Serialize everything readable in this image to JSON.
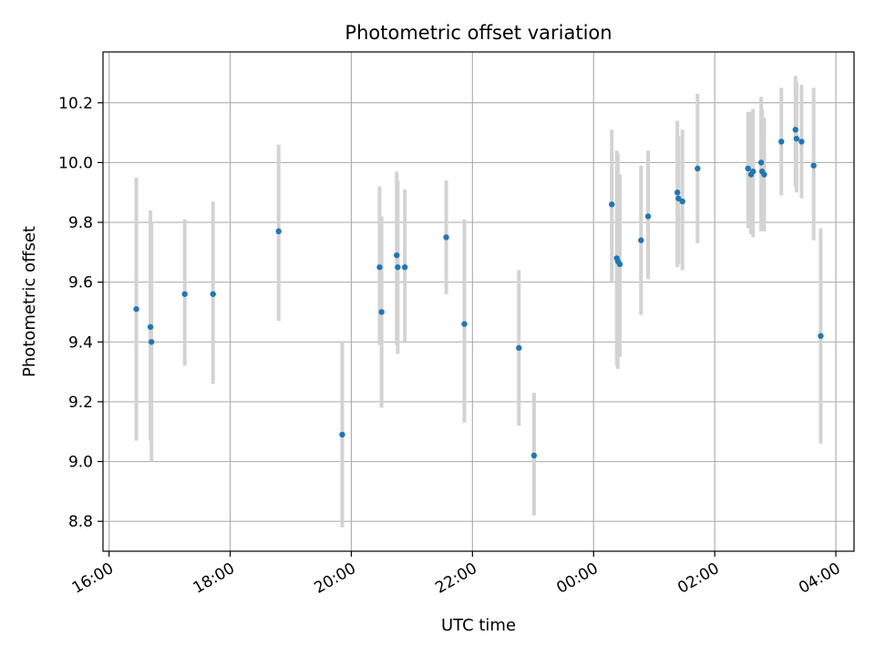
{
  "chart_data": {
    "type": "scatter",
    "title": "Photometric offset variation",
    "xlabel": "UTC time",
    "ylabel": "Photometric offset",
    "x_range": [
      "15:54",
      "04:18"
    ],
    "ylim": [
      8.7,
      10.37
    ],
    "grid": true,
    "x_ticks": [
      {
        "t": "16:00",
        "label": "16:00"
      },
      {
        "t": "18:00",
        "label": "18:00"
      },
      {
        "t": "20:00",
        "label": "20:00"
      },
      {
        "t": "22:00",
        "label": "22:00"
      },
      {
        "t": "00:00",
        "label": "00:00"
      },
      {
        "t": "02:00",
        "label": "02:00"
      },
      {
        "t": "04:00",
        "label": "04:00"
      }
    ],
    "y_ticks": [
      {
        "v": 8.8,
        "label": "8.8"
      },
      {
        "v": 9.0,
        "label": "9.0"
      },
      {
        "v": 9.2,
        "label": "9.2"
      },
      {
        "v": 9.4,
        "label": "9.4"
      },
      {
        "v": 9.6,
        "label": "9.6"
      },
      {
        "v": 9.8,
        "label": "9.8"
      },
      {
        "v": 10.0,
        "label": "10.0"
      },
      {
        "v": 10.2,
        "label": "10.2"
      }
    ],
    "colors": {
      "point": "#1f77b4",
      "errorbar": "#d3d3d3",
      "grid": "#b0b0b0"
    },
    "points": [
      {
        "t": "16:27",
        "y": 9.51,
        "lo": 9.07,
        "hi": 9.95
      },
      {
        "t": "16:41",
        "y": 9.45,
        "lo": 9.07,
        "hi": 9.84
      },
      {
        "t": "16:42",
        "y": 9.4,
        "lo": 9.0,
        "hi": 9.8
      },
      {
        "t": "17:15",
        "y": 9.56,
        "lo": 9.32,
        "hi": 9.81
      },
      {
        "t": "17:43",
        "y": 9.56,
        "lo": 9.26,
        "hi": 9.87
      },
      {
        "t": "18:48",
        "y": 9.77,
        "lo": 9.47,
        "hi": 10.06
      },
      {
        "t": "19:51",
        "y": 9.09,
        "lo": 8.78,
        "hi": 9.4
      },
      {
        "t": "20:28",
        "y": 9.65,
        "lo": 9.39,
        "hi": 9.92
      },
      {
        "t": "20:30",
        "y": 9.5,
        "lo": 9.18,
        "hi": 9.82
      },
      {
        "t": "20:45",
        "y": 9.69,
        "lo": 9.39,
        "hi": 9.97
      },
      {
        "t": "20:46",
        "y": 9.65,
        "lo": 9.36,
        "hi": 9.94
      },
      {
        "t": "20:53",
        "y": 9.65,
        "lo": 9.4,
        "hi": 9.91
      },
      {
        "t": "21:34",
        "y": 9.75,
        "lo": 9.56,
        "hi": 9.94
      },
      {
        "t": "21:52",
        "y": 9.46,
        "lo": 9.13,
        "hi": 9.81
      },
      {
        "t": "22:46",
        "y": 9.38,
        "lo": 9.12,
        "hi": 9.64
      },
      {
        "t": "23:01",
        "y": 9.02,
        "lo": 8.82,
        "hi": 9.23
      },
      {
        "t": "00:18",
        "y": 9.86,
        "lo": 9.6,
        "hi": 10.11
      },
      {
        "t": "00:23",
        "y": 9.68,
        "lo": 9.32,
        "hi": 10.04
      },
      {
        "t": "00:24",
        "y": 9.67,
        "lo": 9.31,
        "hi": 10.03
      },
      {
        "t": "00:26",
        "y": 9.66,
        "lo": 9.35,
        "hi": 9.96
      },
      {
        "t": "00:47",
        "y": 9.74,
        "lo": 9.49,
        "hi": 9.99
      },
      {
        "t": "00:54",
        "y": 9.82,
        "lo": 9.61,
        "hi": 10.04
      },
      {
        "t": "01:23",
        "y": 9.9,
        "lo": 9.65,
        "hi": 10.14
      },
      {
        "t": "01:24",
        "y": 9.88,
        "lo": 9.66,
        "hi": 10.09
      },
      {
        "t": "01:28",
        "y": 9.87,
        "lo": 9.64,
        "hi": 10.11
      },
      {
        "t": "01:43",
        "y": 9.98,
        "lo": 9.73,
        "hi": 10.23
      },
      {
        "t": "02:33",
        "y": 9.98,
        "lo": 9.78,
        "hi": 10.17
      },
      {
        "t": "02:36",
        "y": 9.96,
        "lo": 9.76,
        "hi": 10.17
      },
      {
        "t": "02:38",
        "y": 9.97,
        "lo": 9.75,
        "hi": 10.18
      },
      {
        "t": "02:46",
        "y": 10.0,
        "lo": 9.77,
        "hi": 10.22
      },
      {
        "t": "02:47",
        "y": 9.97,
        "lo": 9.77,
        "hi": 10.18
      },
      {
        "t": "02:49",
        "y": 9.96,
        "lo": 9.77,
        "hi": 10.15
      },
      {
        "t": "03:06",
        "y": 10.07,
        "lo": 9.89,
        "hi": 10.25
      },
      {
        "t": "03:20",
        "y": 10.11,
        "lo": 9.92,
        "hi": 10.29
      },
      {
        "t": "03:21",
        "y": 10.08,
        "lo": 9.9,
        "hi": 10.27
      },
      {
        "t": "03:26",
        "y": 10.07,
        "lo": 9.88,
        "hi": 10.26
      },
      {
        "t": "03:38",
        "y": 9.99,
        "lo": 9.74,
        "hi": 10.25
      },
      {
        "t": "03:45",
        "y": 9.42,
        "lo": 9.06,
        "hi": 9.78
      }
    ]
  }
}
